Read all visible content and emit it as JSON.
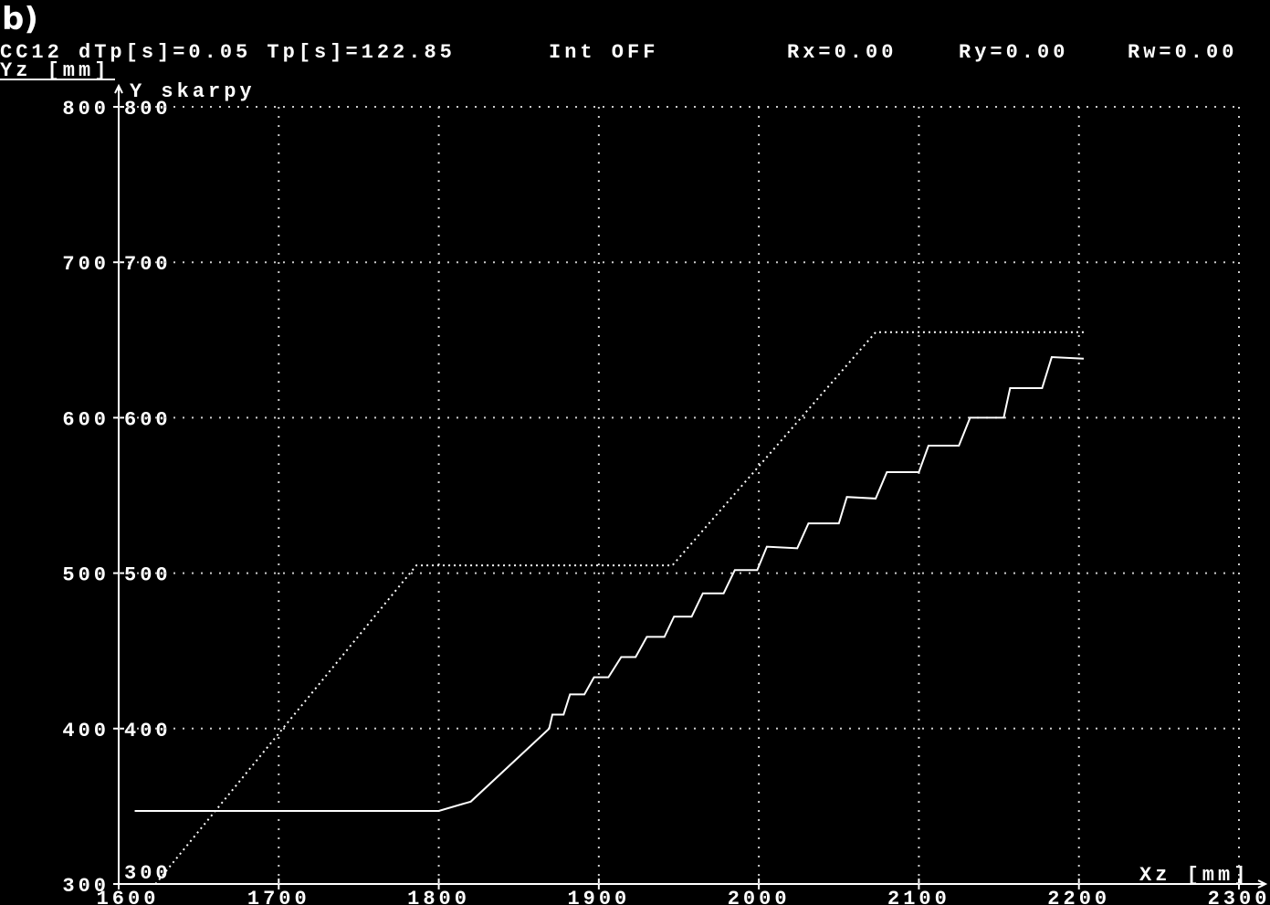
{
  "panel_label": "b)",
  "chart_data": {
    "type": "line",
    "header": [
      "CC12 dTp[s]=0.05 Tp[s]=122.85",
      "Int OFF",
      "Rx=0.00",
      "Ry=0.00",
      "Rw=0.00"
    ],
    "y_label": "Yz [mm]",
    "y_axis_title": "Y skarpy",
    "x_label": "Xz [mm]",
    "xlim": [
      1600,
      2300
    ],
    "ylim": [
      300,
      800
    ],
    "xticks": [
      1600,
      1700,
      1800,
      1900,
      2000,
      2100,
      2200,
      2300
    ],
    "yticks": [
      300,
      400,
      500,
      600,
      700,
      800
    ],
    "grid": true,
    "series": [
      {
        "color": "#ffffff",
        "dash": "dotted",
        "x": [
          1623,
          1786,
          1946,
          2073,
          2203
        ],
        "values": [
          300,
          505,
          505,
          655,
          655
        ]
      },
      {
        "color": "#ffffff",
        "dash": "solid",
        "x": [
          1610,
          1800,
          1820,
          1869,
          1871,
          1878,
          1882,
          1891,
          1897,
          1906,
          1914,
          1923,
          1930,
          1941,
          1947,
          1958,
          1965,
          1978,
          1985,
          1999,
          2005,
          2024,
          2031,
          2050,
          2055,
          2073,
          2080,
          2100,
          2106,
          2125,
          2132,
          2153,
          2157,
          2177,
          2183,
          2203
        ],
        "values": [
          347,
          347,
          353,
          400,
          409,
          409,
          422,
          422,
          433,
          433,
          446,
          446,
          459,
          459,
          472,
          472,
          487,
          487,
          502,
          502,
          517,
          516,
          532,
          532,
          549,
          548,
          565,
          565,
          582,
          582,
          600,
          600,
          619,
          619,
          639,
          638
        ]
      }
    ]
  }
}
